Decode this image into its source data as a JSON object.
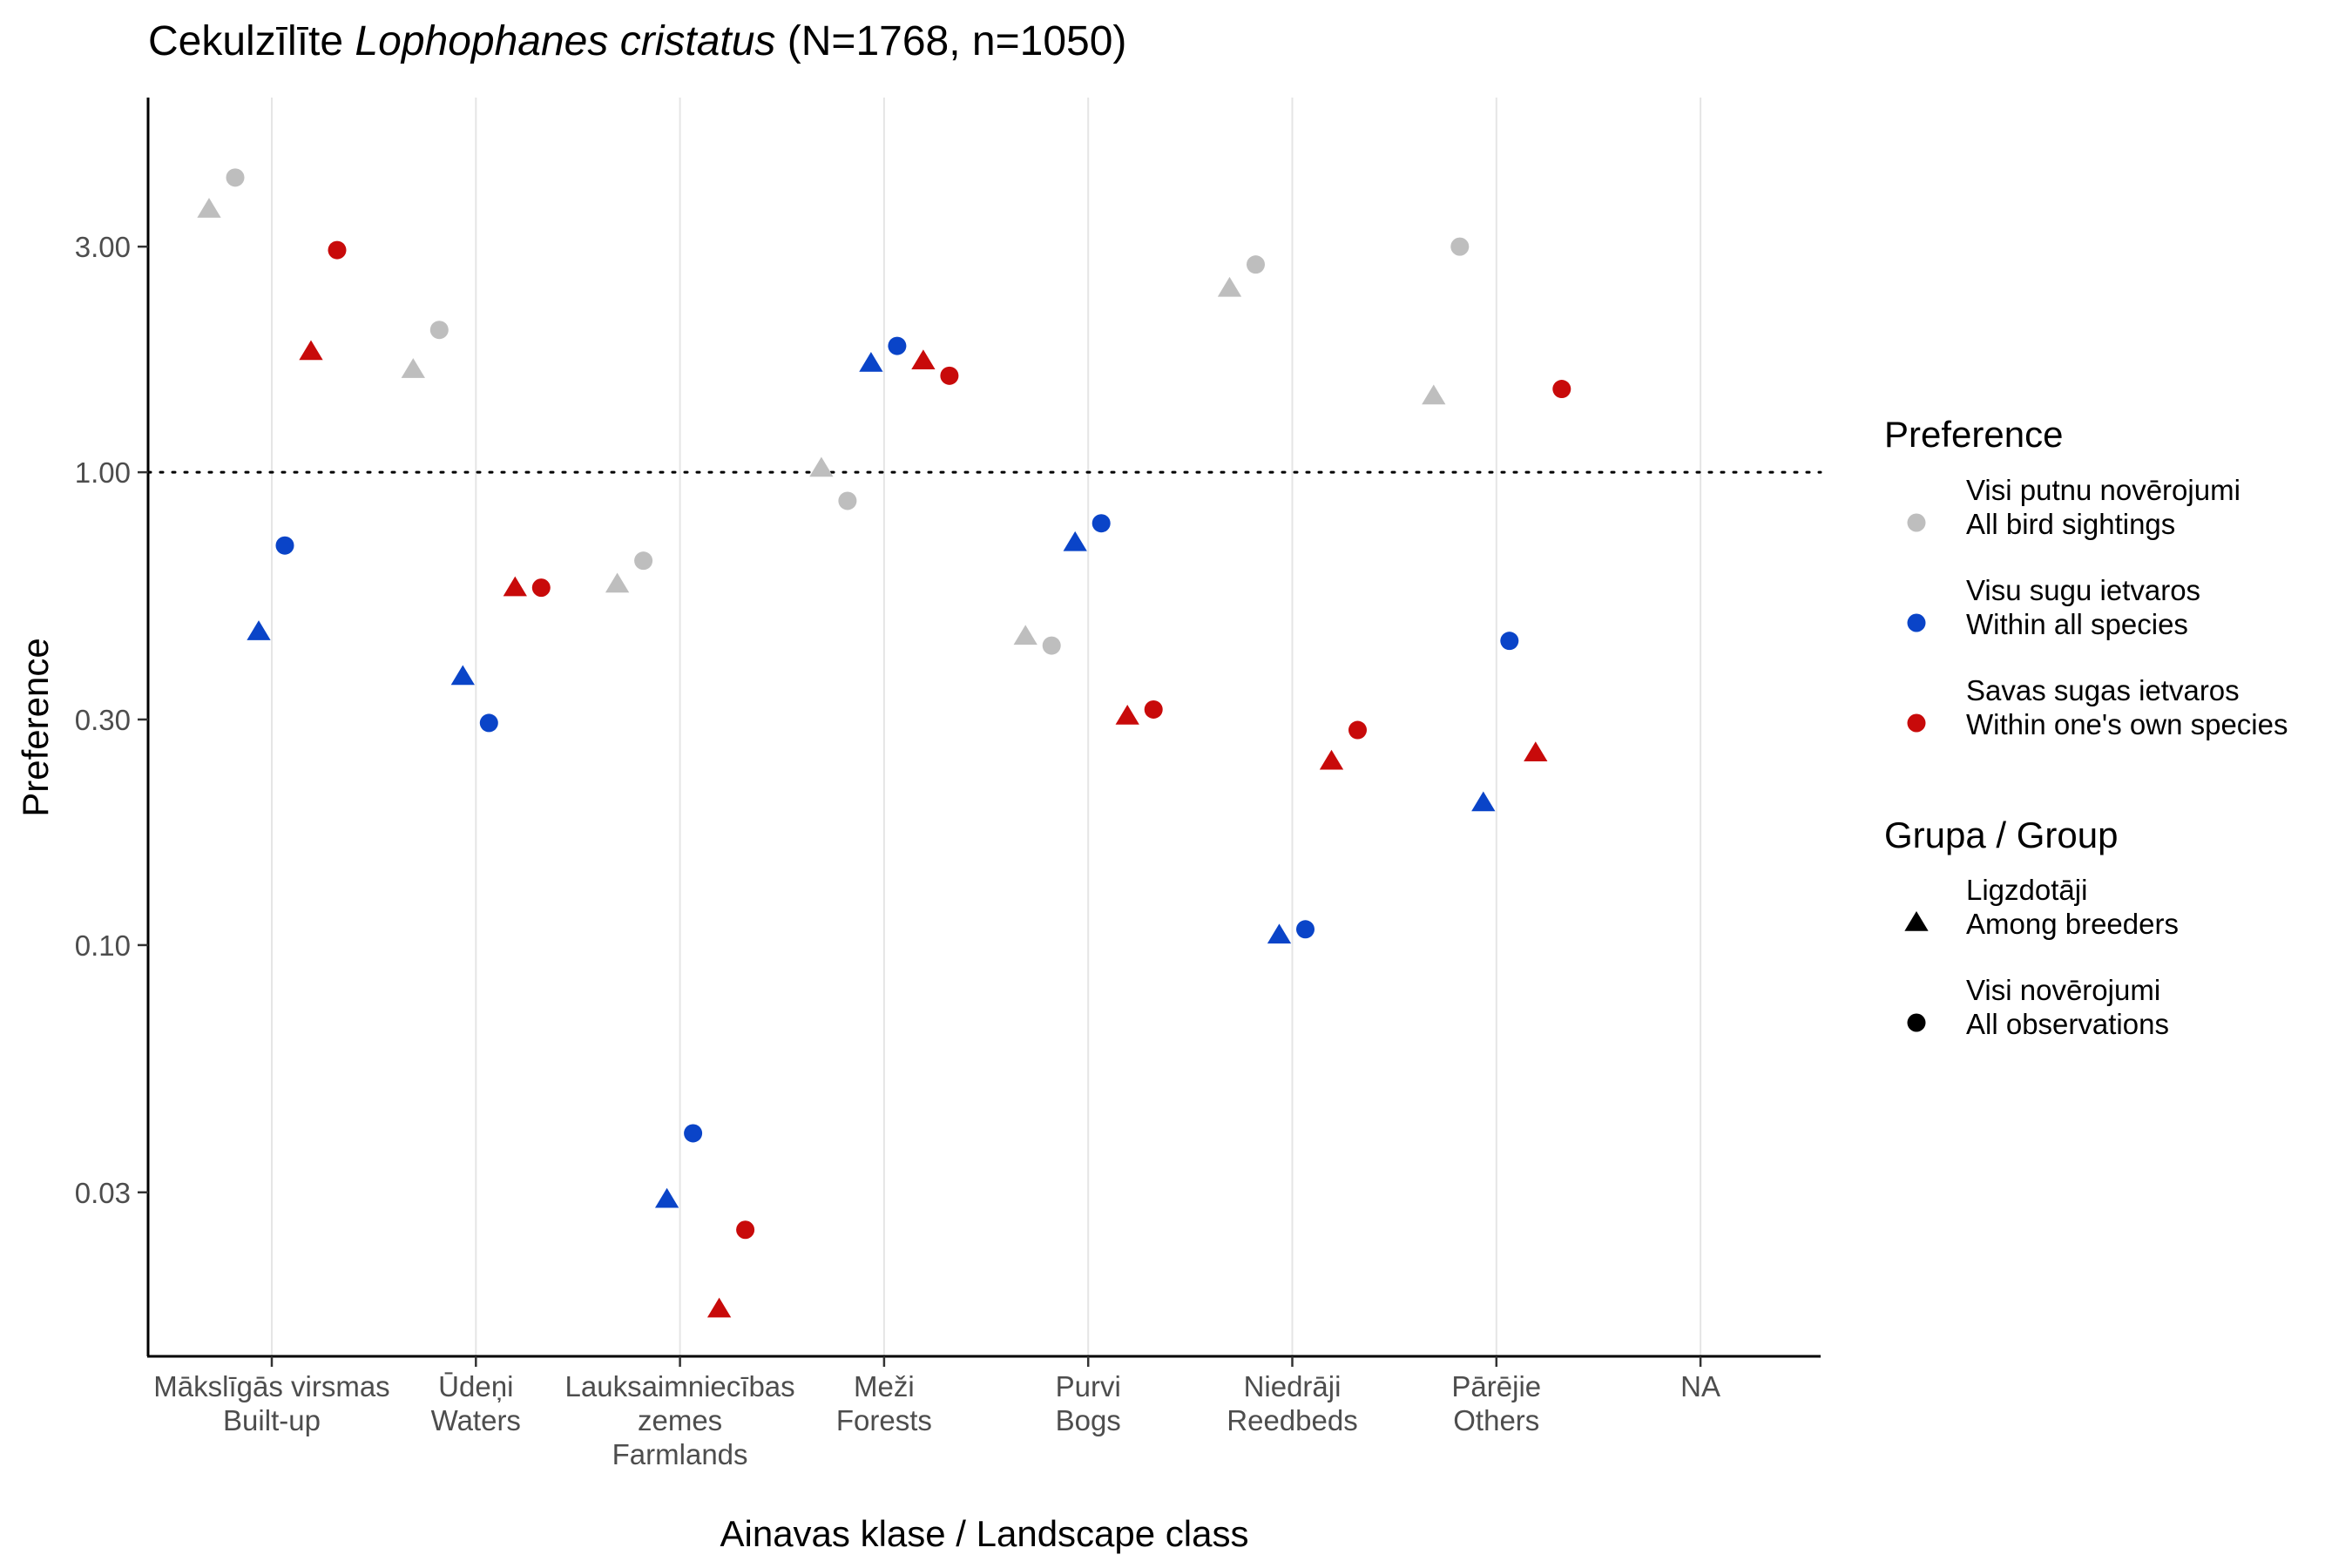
{
  "chart_data": {
    "type": "scatter",
    "title_plain": "Cekulzīlīte ",
    "title_italic": "Lophophanes cristatus",
    "title_suffix": " (N=1768, n=1050)",
    "xlabel": "Ainavas klase / Landscape class",
    "ylabel": "Preference",
    "y_scale": "log10",
    "ylim": [
      0.0135,
      6.2
    ],
    "y_ticks": [
      0.03,
      0.1,
      0.3,
      1.0,
      3.0
    ],
    "y_tick_labels": [
      "0.03",
      "0.10",
      "0.30",
      "1.00",
      "3.00"
    ],
    "reference_line": 1.0,
    "grid": "vertical major only",
    "categories": [
      [
        "Mākslīgās virsmas",
        "Built-up"
      ],
      [
        "Ūdeņi",
        "Waters"
      ],
      [
        "Lauksaimniecības",
        "zemes",
        "Farmlands"
      ],
      [
        "Meži",
        "Forests"
      ],
      [
        "Purvi",
        "Bogs"
      ],
      [
        "Niedrāji",
        "Reedbeds"
      ],
      [
        "Pārējie",
        "Others"
      ],
      [
        "NA"
      ]
    ],
    "legend_placement": "right",
    "legend_preference": {
      "title": "Preference",
      "items": [
        {
          "line1": "Visi putnu novērojumi",
          "line2": "All bird sightings",
          "color": "#bebebe"
        },
        {
          "line1": "Visu sugu ietvaros",
          "line2": "Within all species",
          "color": "#0a44c8"
        },
        {
          "line1": "Savas sugas ietvaros",
          "line2": "Within one's own species",
          "color": "#c80a0a"
        }
      ]
    },
    "legend_group": {
      "title": "Grupa / Group",
      "items": [
        {
          "line1": "Ligzdotāji",
          "line2": "Among breeders",
          "shape": "triangle"
        },
        {
          "line1": "Visi novērojumi",
          "line2": "All observations",
          "shape": "circle"
        }
      ]
    },
    "series": [
      {
        "name": "Visi putnu novērojumi / Ligzdotāji",
        "preference": 0,
        "shape": "triangle",
        "values": [
          3.6,
          1.65,
          0.58,
          1.02,
          0.45,
          2.45,
          1.45,
          null
        ]
      },
      {
        "name": "Visi putnu novērojumi / Visi novērojumi",
        "preference": 0,
        "shape": "circle",
        "values": [
          4.2,
          2.0,
          0.65,
          0.87,
          0.43,
          2.75,
          3.0,
          null
        ]
      },
      {
        "name": "Visu sugu ietvaros / Ligzdotāji",
        "preference": 1,
        "shape": "triangle",
        "values": [
          0.46,
          0.37,
          0.029,
          1.7,
          0.71,
          0.105,
          0.2,
          null
        ]
      },
      {
        "name": "Visu sugu ietvaros / Visi novērojumi",
        "preference": 1,
        "shape": "circle",
        "values": [
          0.7,
          0.295,
          0.04,
          1.85,
          0.78,
          0.108,
          0.44,
          null
        ]
      },
      {
        "name": "Savas sugas ietvaros / Ligzdotāji",
        "preference": 2,
        "shape": "triangle",
        "values": [
          1.8,
          0.57,
          0.017,
          1.72,
          0.305,
          0.245,
          0.255,
          null
        ]
      },
      {
        "name": "Savas sugas ietvaros / Visi novērojumi",
        "preference": 2,
        "shape": "circle",
        "values": [
          2.95,
          0.57,
          0.025,
          1.6,
          0.315,
          0.285,
          1.5,
          null
        ]
      }
    ]
  }
}
